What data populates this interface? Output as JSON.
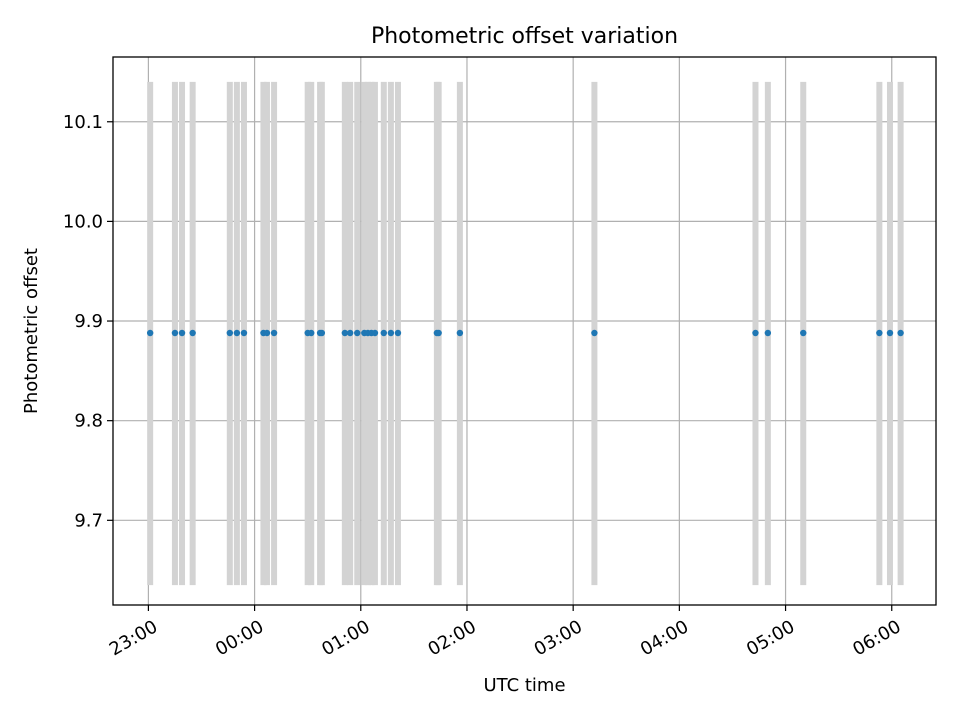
{
  "chart_data": {
    "type": "scatter",
    "title": "Photometric offset variation",
    "xlabel": "UTC time",
    "ylabel": "Photometric offset",
    "x_ticks": [
      "23:00",
      "00:00",
      "01:00",
      "02:00",
      "03:00",
      "04:00",
      "05:00",
      "06:00"
    ],
    "y_ticks": [
      "9.7",
      "9.8",
      "9.9",
      "10.0",
      "10.1"
    ],
    "ylim": [
      9.615,
      10.165
    ],
    "xlim": [
      "22:40",
      "06:25"
    ],
    "grid": true,
    "colors": {
      "points": "#1f77b4",
      "bars": "#d3d3d3",
      "grid": "#b0b0b0"
    },
    "bars": {
      "low": 9.635,
      "high": 10.14
    },
    "points": [
      {
        "x": "23:01",
        "y": 9.888
      },
      {
        "x": "23:15",
        "y": 9.888
      },
      {
        "x": "23:19",
        "y": 9.888
      },
      {
        "x": "23:25",
        "y": 9.888
      },
      {
        "x": "23:46",
        "y": 9.888
      },
      {
        "x": "23:50",
        "y": 9.888
      },
      {
        "x": "23:54",
        "y": 9.888
      },
      {
        "x": "00:05",
        "y": 9.888
      },
      {
        "x": "00:07",
        "y": 9.888
      },
      {
        "x": "00:11",
        "y": 9.888
      },
      {
        "x": "00:30",
        "y": 9.888
      },
      {
        "x": "00:32",
        "y": 9.888
      },
      {
        "x": "00:37",
        "y": 9.888
      },
      {
        "x": "00:38",
        "y": 9.888
      },
      {
        "x": "00:51",
        "y": 9.888
      },
      {
        "x": "00:54",
        "y": 9.888
      },
      {
        "x": "00:58",
        "y": 9.888
      },
      {
        "x": "01:02",
        "y": 9.888
      },
      {
        "x": "01:04",
        "y": 9.888
      },
      {
        "x": "01:06",
        "y": 9.888
      },
      {
        "x": "01:08",
        "y": 9.888
      },
      {
        "x": "01:13",
        "y": 9.888
      },
      {
        "x": "01:17",
        "y": 9.888
      },
      {
        "x": "01:21",
        "y": 9.888
      },
      {
        "x": "01:43",
        "y": 9.888
      },
      {
        "x": "01:44",
        "y": 9.888
      },
      {
        "x": "01:56",
        "y": 9.888
      },
      {
        "x": "03:12",
        "y": 9.888
      },
      {
        "x": "04:43",
        "y": 9.888
      },
      {
        "x": "04:50",
        "y": 9.888
      },
      {
        "x": "05:10",
        "y": 9.888
      },
      {
        "x": "05:53",
        "y": 9.888
      },
      {
        "x": "05:59",
        "y": 9.888
      },
      {
        "x": "06:05",
        "y": 9.888
      }
    ]
  }
}
